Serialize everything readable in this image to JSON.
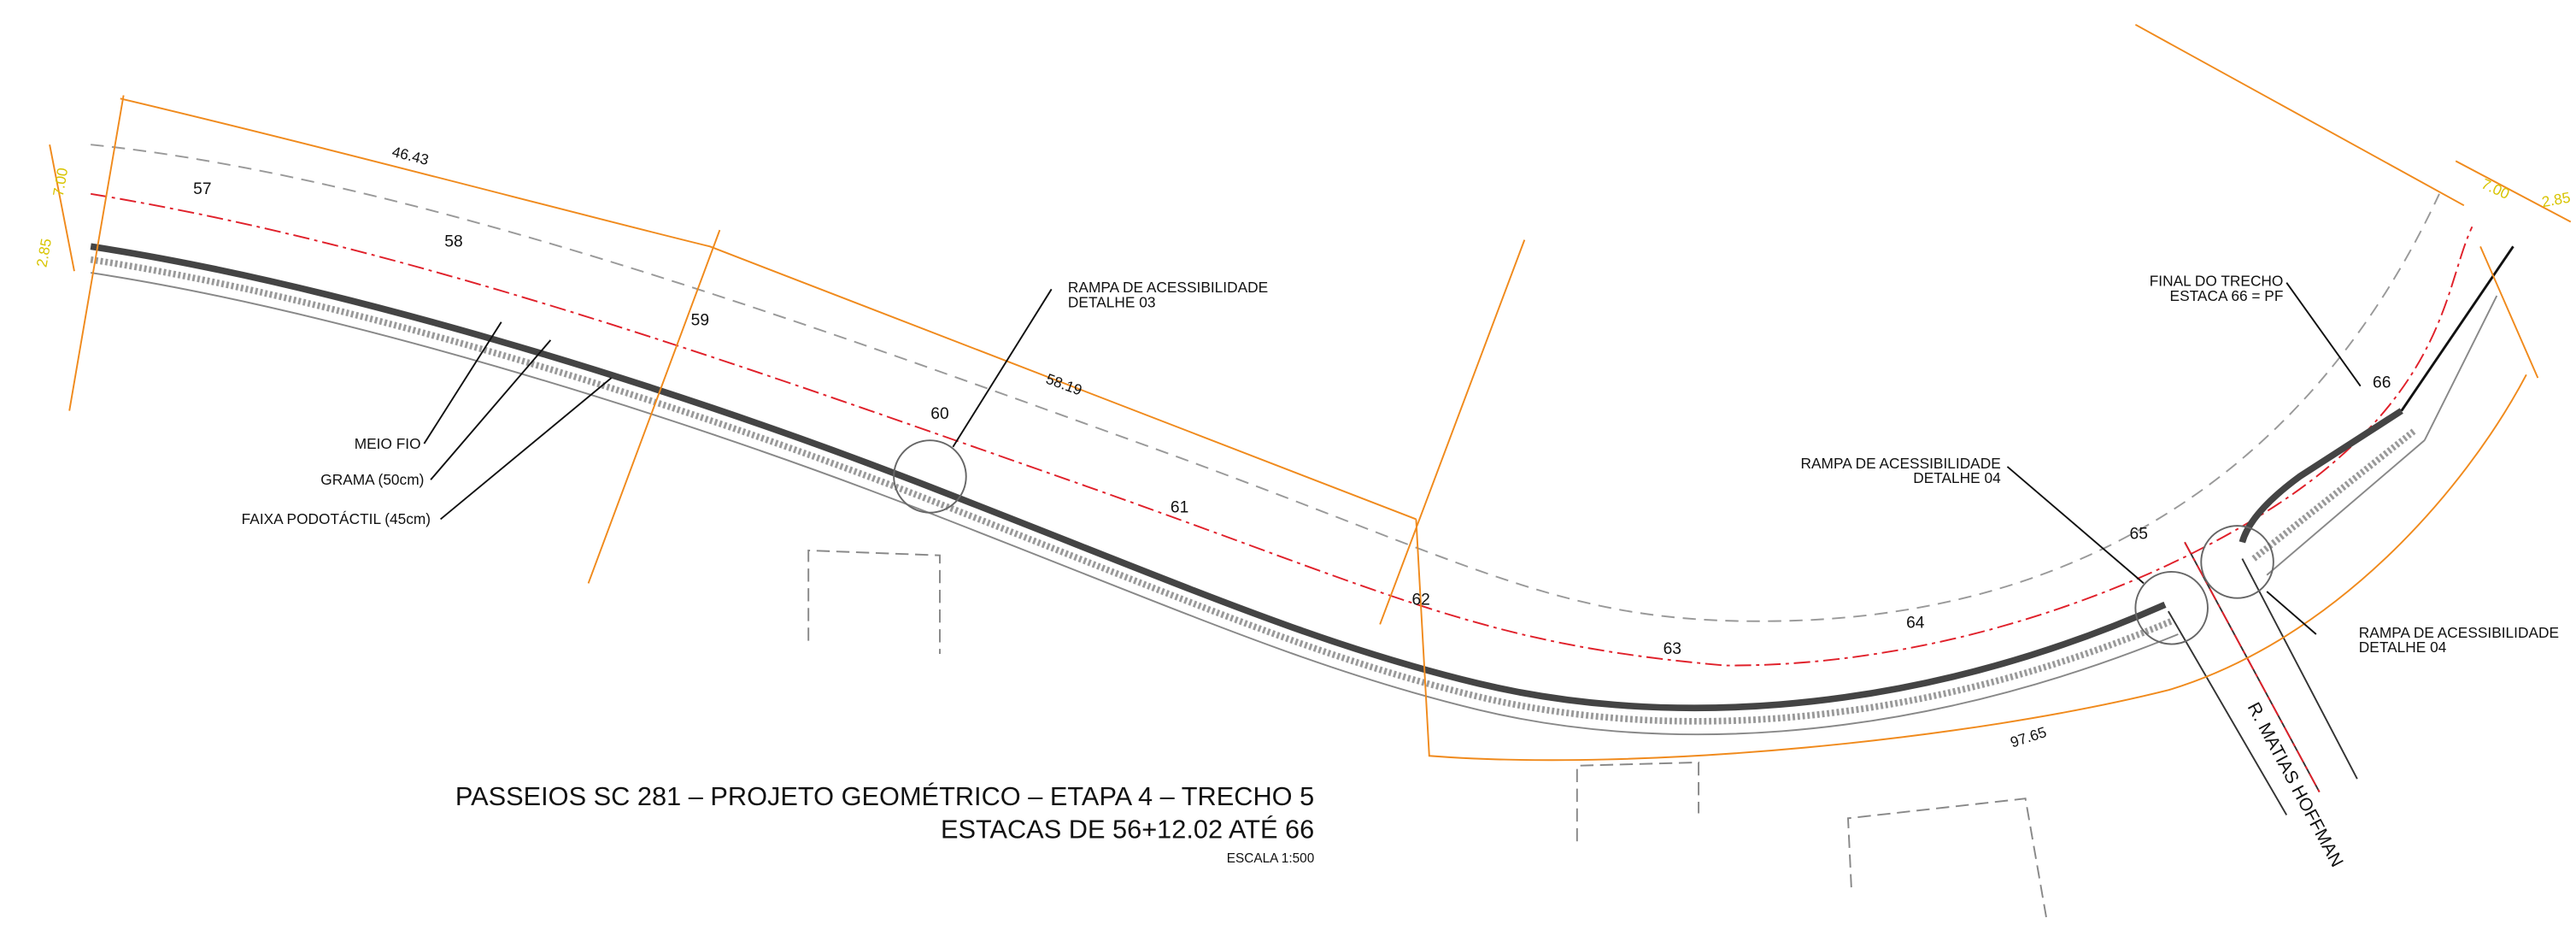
{
  "title": {
    "line1": "PASSEIOS SC 281 – PROJETO GEOMÉTRICO – ETAPA 4 – TRECHO 5",
    "line2": "ESTACAS DE 56+12.02 ATÉ 66",
    "scale": "ESCALA 1:500"
  },
  "stations": [
    "57",
    "58",
    "59",
    "60",
    "61",
    "62",
    "63",
    "64",
    "65",
    "66"
  ],
  "dimensions": {
    "arc1": "46.43",
    "arc2": "58.19",
    "arc3": "97.65",
    "width_left": "7.00",
    "offset_left": "2.85",
    "width_right": "7.00",
    "offset_right": "2.85"
  },
  "labels": {
    "curb": "MEIO FIO",
    "grass": "GRAMA (50cm)",
    "tactile": "FAIXA PODOTÁCTIL (45cm)"
  },
  "callouts": {
    "ramp3_line1": "RAMPA DE ACESSIBILIDADE",
    "ramp3_line2": "DETALHE 03",
    "ramp4a_line1": "RAMPA DE ACESSIBILIDADE",
    "ramp4a_line2": "DETALHE 04",
    "ramp4b_line1": "RAMPA DE ACESSIBILIDADE",
    "ramp4b_line2": "DETALHE 04",
    "end_line1": "FINAL DO TRECHO",
    "end_line2": "ESTACA 66 = PF"
  },
  "street": "R. MATIAS HOFFMAN"
}
